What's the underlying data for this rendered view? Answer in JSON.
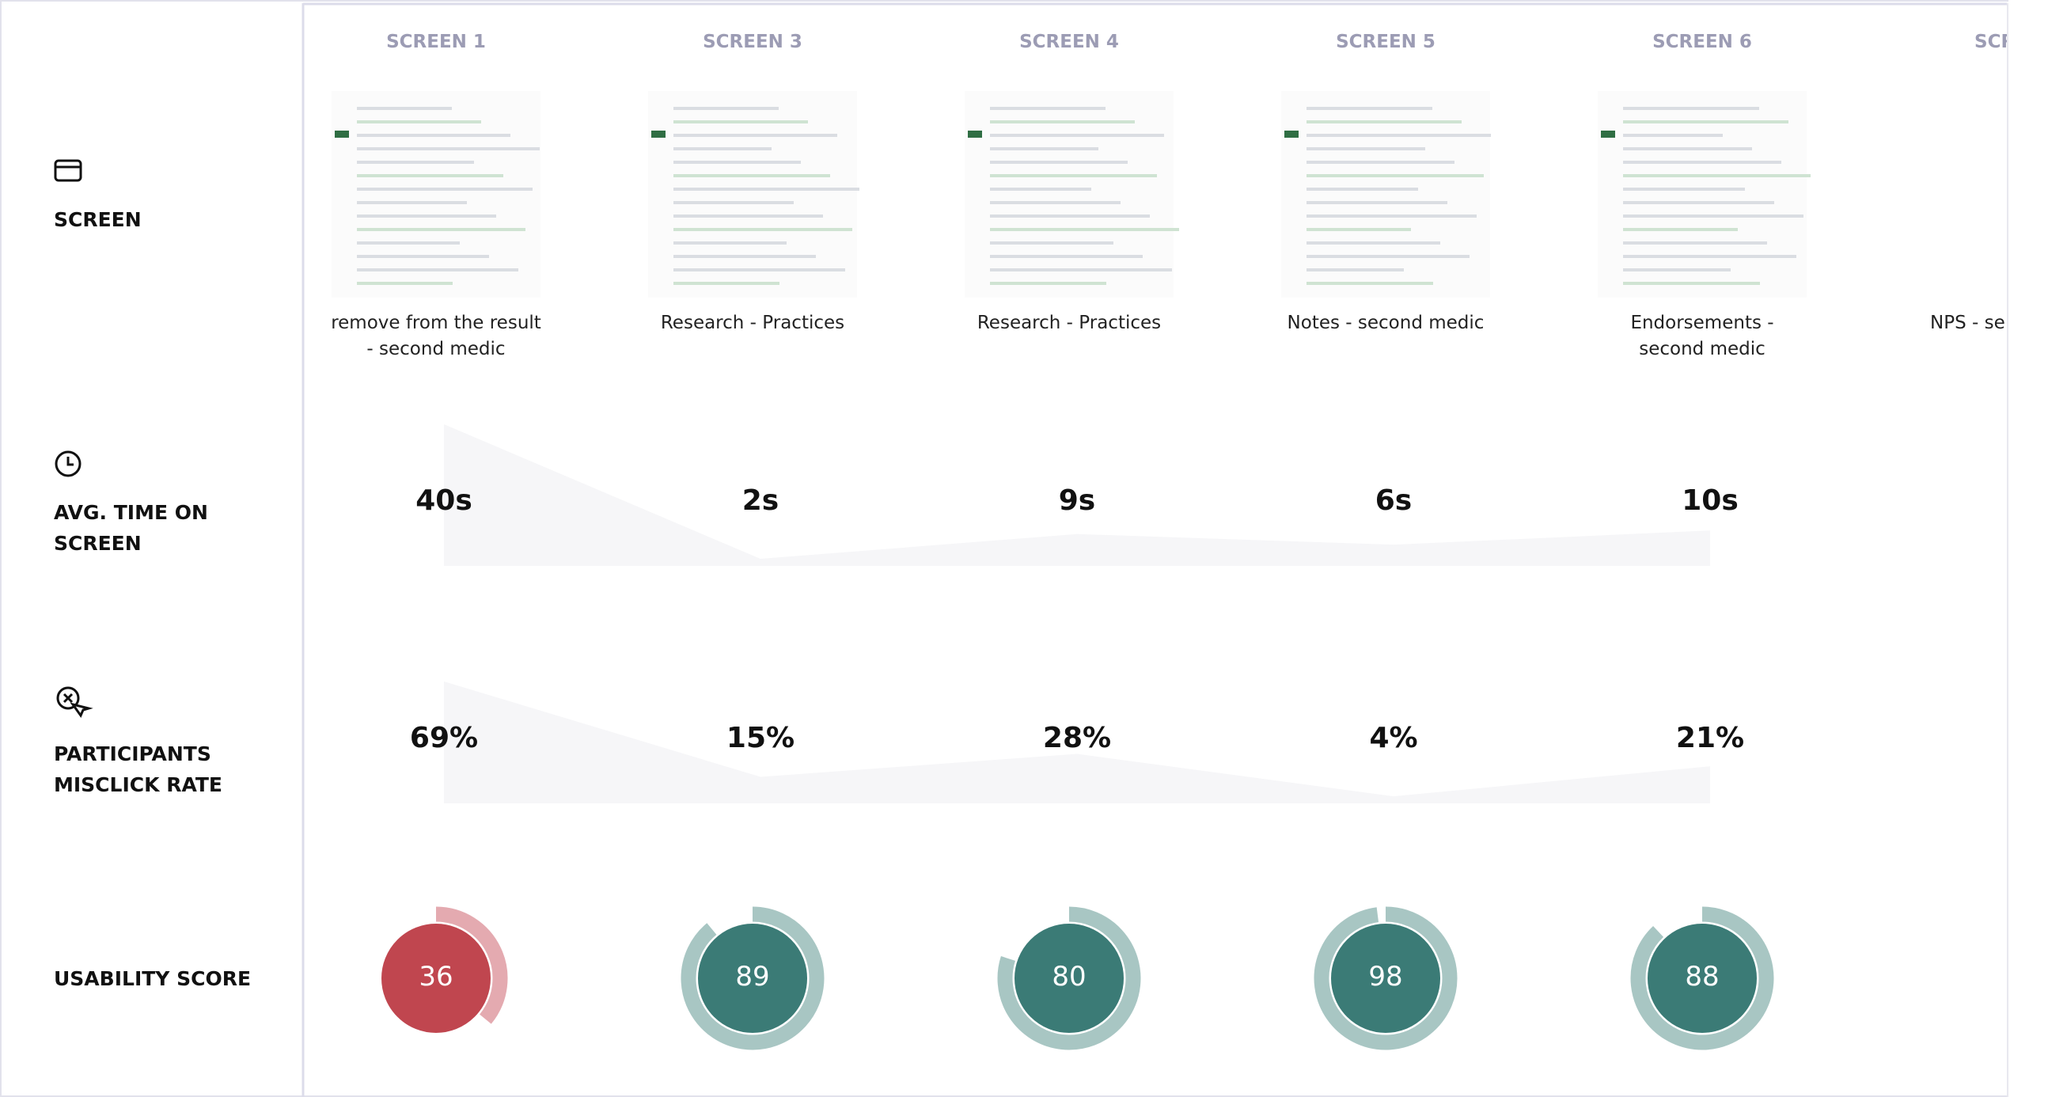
{
  "header": {
    "columns": [
      {
        "title": "SCREEN 1",
        "caption": "remove from the result - second medic"
      },
      {
        "title": "SCREEN 3",
        "caption": "Research - Practices"
      },
      {
        "title": "SCREEN 4",
        "caption": "Research - Practices"
      },
      {
        "title": "SCREEN 5",
        "caption": "Notes - second medic"
      },
      {
        "title": "SCREEN 6",
        "caption": "Endorsements - second medic"
      }
    ],
    "clipped_column": {
      "title": "SCR",
      "caption": "NPS - se"
    }
  },
  "rows": {
    "screen": "SCREEN",
    "time": "AVG. TIME ON SCREEN",
    "misclick": "PARTICIPANTS MISCLICK RATE",
    "usability": "USABILITY SCORE"
  },
  "time": {
    "values": [
      40,
      2,
      9,
      6,
      10
    ],
    "value_labels": [
      "40s",
      "2s",
      "9s",
      "6s",
      "10s"
    ],
    "area_color": "#f6f6f8"
  },
  "misclick": {
    "values": [
      69,
      15,
      28,
      4,
      21
    ],
    "value_labels": [
      "69%",
      "15%",
      "28%",
      "4%",
      "21%"
    ],
    "area_color": "#f6f6f8"
  },
  "usability": {
    "values": [
      36,
      89,
      80,
      98,
      88
    ],
    "colors": [
      "#c0464f",
      "#3b7b76",
      "#3b7b76",
      "#3b7b76",
      "#3b7b76"
    ],
    "track_colors": [
      "#e4aab0",
      "#a8c6c3",
      "#a8c6c3",
      "#a8c6c3",
      "#a8c6c3"
    ],
    "max": 100
  }
}
